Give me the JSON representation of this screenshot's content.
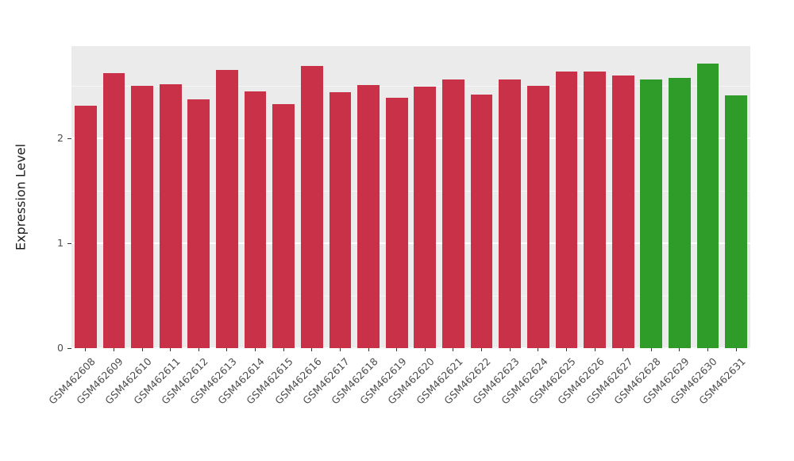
{
  "chart_data": {
    "type": "bar",
    "title": "",
    "xlabel": "",
    "ylabel": "Expression Level",
    "ylim": [
      0,
      2.88
    ],
    "yticks": [
      0,
      1,
      2
    ],
    "yticks_minor": [
      0.5,
      1.5,
      2.5
    ],
    "grid": "on",
    "legend": "none",
    "panel_background": "#EBEBEB",
    "gridline_color": "#FFFFFF",
    "categories": [
      "GSM462608",
      "GSM462609",
      "GSM462610",
      "GSM462611",
      "GSM462612",
      "GSM462613",
      "GSM462614",
      "GSM462615",
      "GSM462616",
      "GSM462617",
      "GSM462618",
      "GSM462619",
      "GSM462620",
      "GSM462621",
      "GSM462622",
      "GSM462623",
      "GSM462624",
      "GSM462625",
      "GSM462626",
      "GSM462627",
      "GSM462628",
      "GSM462629",
      "GSM462630",
      "GSM462631"
    ],
    "values": [
      2.31,
      2.62,
      2.5,
      2.52,
      2.37,
      2.65,
      2.45,
      2.33,
      2.69,
      2.44,
      2.51,
      2.39,
      2.49,
      2.56,
      2.42,
      2.56,
      2.5,
      2.64,
      2.64,
      2.6,
      2.56,
      2.58,
      2.71,
      2.41
    ],
    "colors": [
      "#C93148",
      "#C93148",
      "#C93148",
      "#C93148",
      "#C93148",
      "#C93148",
      "#C93148",
      "#C93148",
      "#C93148",
      "#C93148",
      "#C93148",
      "#C93148",
      "#C93148",
      "#C93148",
      "#C93148",
      "#C93148",
      "#C93148",
      "#C93148",
      "#C93148",
      "#C93148",
      "#2F9B28",
      "#2F9B28",
      "#2F9B28",
      "#2F9B28"
    ],
    "group_colors": {
      "red_group": "#C93148",
      "green_group": "#2F9B28"
    }
  }
}
